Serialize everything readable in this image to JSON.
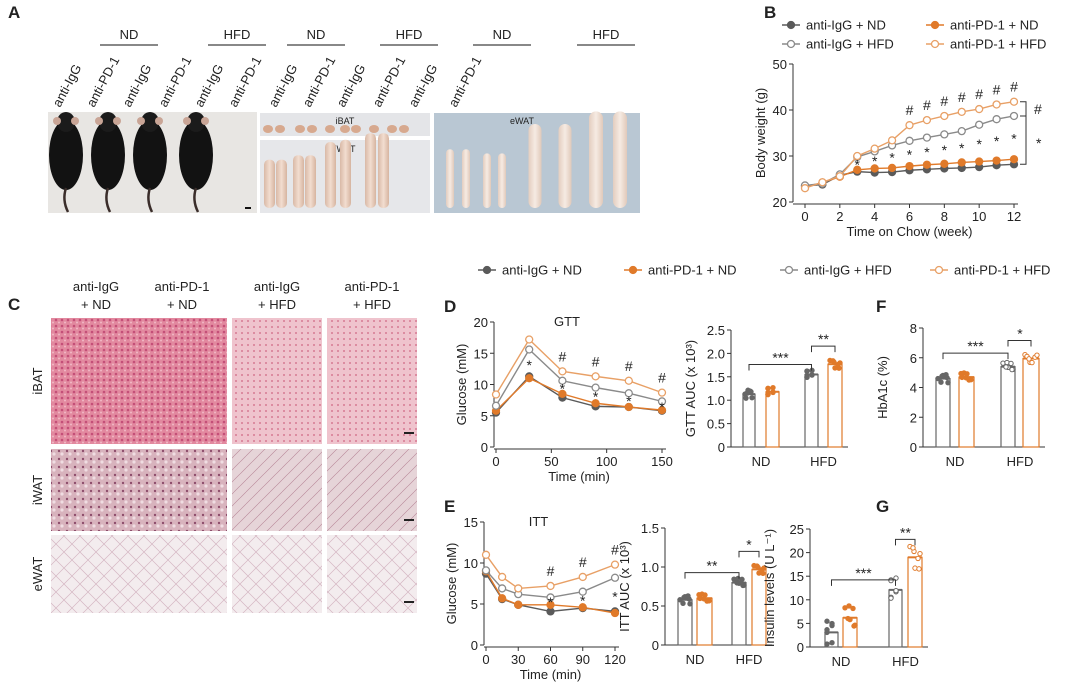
{
  "colors": {
    "igg_nd": "#5a5a5a",
    "pd1_nd": "#e07a2a",
    "igg_hfd": "#8a8a8a",
    "pd1_hfd": "#e8a066"
  },
  "legend": [
    "anti-IgG + ND",
    "anti-PD-1 + ND",
    "anti-IgG + HFD",
    "anti-PD-1 + HFD"
  ],
  "panel_a": {
    "label": "A",
    "diet_headers": [
      "ND",
      "HFD",
      "ND",
      "HFD",
      "ND",
      "HFD"
    ],
    "treatments": [
      "anti-IgG",
      "anti-PD-1",
      "anti-IgG",
      "anti-PD-1",
      "anti-IgG",
      "anti-PD-1",
      "anti-IgG",
      "anti-PD-1",
      "anti-IgG",
      "anti-PD-1",
      "anti-IgG",
      "anti-PD-1"
    ],
    "tissues": [
      "iBAT",
      "iWAT",
      "eWAT"
    ]
  },
  "panel_c": {
    "label": "C",
    "columns": [
      [
        "anti-IgG",
        "+ ND"
      ],
      [
        "anti-PD-1",
        "+ ND"
      ],
      [
        "anti-IgG",
        "+ HFD"
      ],
      [
        "anti-PD-1",
        "+ HFD"
      ]
    ],
    "rows": [
      "iBAT",
      "iWAT",
      "eWAT"
    ]
  },
  "chart_data": [
    {
      "id": "B",
      "label": "B",
      "type": "line",
      "title": "",
      "xlabel": "Time on Chow (week)",
      "ylabel": "Body weight (g)",
      "xlim": [
        0,
        12
      ],
      "ylim": [
        20,
        50
      ],
      "xticks": [
        0,
        2,
        4,
        6,
        8,
        10,
        12
      ],
      "yticks": [
        20,
        30,
        40,
        50
      ],
      "x": [
        0,
        1,
        2,
        3,
        4,
        5,
        6,
        7,
        8,
        9,
        10,
        11,
        12
      ],
      "series": [
        {
          "name": "anti-IgG + ND",
          "values": [
            23.5,
            23.8,
            25.8,
            26.6,
            26.4,
            26.5,
            26.9,
            27.1,
            27.3,
            27.4,
            27.6,
            28.0,
            28.2
          ]
        },
        {
          "name": "anti-PD-1 + ND",
          "values": [
            23.3,
            24.2,
            25.5,
            27.0,
            27.3,
            27.4,
            27.8,
            28.1,
            28.3,
            28.6,
            28.8,
            29.0,
            29.3
          ]
        },
        {
          "name": "anti-IgG + HFD",
          "values": [
            23.6,
            24.0,
            26.0,
            29.8,
            31.0,
            32.3,
            33.3,
            34.0,
            34.7,
            35.4,
            36.8,
            38.0,
            38.7
          ]
        },
        {
          "name": "anti-PD-1 + HFD",
          "values": [
            23.0,
            24.3,
            25.6,
            30.0,
            31.6,
            33.4,
            36.7,
            37.8,
            38.7,
            39.6,
            40.2,
            41.2,
            41.8
          ]
        }
      ],
      "annotations": {
        "hash_at": [
          6,
          7,
          8,
          9,
          10,
          11,
          12
        ],
        "star_at": [
          3,
          4,
          5,
          6,
          7,
          8,
          9,
          10,
          11,
          12
        ],
        "bracket_marks": [
          "#",
          "*"
        ]
      }
    },
    {
      "id": "D1",
      "label": "D",
      "type": "line",
      "title": "GTT",
      "xlabel": "Time (min)",
      "ylabel": "Glucose (mM)",
      "xlim": [
        0,
        150
      ],
      "ylim": [
        0,
        20
      ],
      "xticks": [
        0,
        50,
        100,
        150
      ],
      "yticks": [
        0,
        5,
        10,
        15,
        20
      ],
      "x": [
        0,
        30,
        60,
        90,
        120,
        150
      ],
      "series": [
        {
          "name": "anti-IgG + ND",
          "values": [
            5.5,
            11.3,
            7.9,
            6.5,
            6.4,
            5.8
          ]
        },
        {
          "name": "anti-PD-1 + ND",
          "values": [
            5.8,
            11.0,
            8.5,
            7.0,
            6.4,
            5.9
          ]
        },
        {
          "name": "anti-IgG + HFD",
          "values": [
            6.6,
            15.6,
            10.6,
            9.5,
            8.6,
            7.3
          ]
        },
        {
          "name": "anti-PD-1 + HFD",
          "values": [
            8.4,
            17.2,
            12.1,
            11.3,
            10.6,
            8.7
          ]
        }
      ],
      "annotations": {
        "hash_at": [
          60,
          90,
          120,
          150
        ],
        "star_at": [
          30,
          60,
          90,
          120,
          150
        ]
      }
    },
    {
      "id": "D2",
      "type": "bar",
      "ylabel": "GTT AUC (x 10³)",
      "categories": [
        "ND",
        "HFD"
      ],
      "ylim": [
        0,
        2.5
      ],
      "yticks": [
        "0",
        "0.5",
        "1.0",
        "1.5",
        "2.0",
        "2.5"
      ],
      "series": [
        {
          "name": "anti-IgG",
          "values": [
            1.13,
            1.55
          ]
        },
        {
          "name": "anti-PD-1",
          "values": [
            1.18,
            1.77
          ]
        }
      ],
      "significance": [
        "***",
        "**"
      ]
    },
    {
      "id": "F",
      "label": "F",
      "type": "bar",
      "ylabel": "HbA1c (%)",
      "categories": [
        "ND",
        "HFD"
      ],
      "ylim": [
        0,
        8
      ],
      "yticks": [
        "0",
        "2",
        "4",
        "6",
        "8"
      ],
      "series": [
        {
          "name": "anti-IgG",
          "values": [
            4.6,
            5.4
          ]
        },
        {
          "name": "anti-PD-1",
          "values": [
            4.7,
            5.95
          ]
        }
      ],
      "significance": [
        "***",
        "*"
      ]
    },
    {
      "id": "E1",
      "label": "E",
      "type": "line",
      "title": "ITT",
      "xlabel": "Time (min)",
      "ylabel": "Glucose (mM)",
      "xlim": [
        0,
        120
      ],
      "ylim": [
        0,
        15
      ],
      "xticks": [
        0,
        30,
        60,
        90,
        120
      ],
      "yticks": [
        0,
        5,
        10,
        15
      ],
      "x": [
        0,
        15,
        30,
        60,
        90,
        120
      ],
      "series": [
        {
          "name": "anti-IgG + ND",
          "values": [
            8.7,
            5.6,
            4.9,
            4.1,
            4.5,
            4.1
          ]
        },
        {
          "name": "anti-PD-1 + ND",
          "values": [
            9.0,
            5.7,
            4.9,
            4.9,
            4.6,
            3.9
          ]
        },
        {
          "name": "anti-IgG + HFD",
          "values": [
            9.1,
            6.9,
            6.2,
            5.8,
            6.5,
            8.2
          ]
        },
        {
          "name": "anti-PD-1 + HFD",
          "values": [
            11.0,
            8.3,
            6.9,
            7.2,
            8.3,
            9.8
          ]
        }
      ],
      "annotations": {
        "hash_at": [
          60,
          90,
          120
        ],
        "star_at": [
          60,
          90,
          120
        ]
      }
    },
    {
      "id": "E2",
      "type": "bar",
      "ylabel": "ITT AUC (x 10³)",
      "categories": [
        "ND",
        "HFD"
      ],
      "ylim": [
        0,
        1.5
      ],
      "yticks": [
        "0",
        "0.5",
        "1.0",
        "1.5"
      ],
      "series": [
        {
          "name": "anti-IgG",
          "values": [
            0.58,
            0.8
          ]
        },
        {
          "name": "anti-PD-1",
          "values": [
            0.6,
            0.97
          ]
        }
      ],
      "significance": [
        "**",
        "*"
      ]
    },
    {
      "id": "G",
      "label": "G",
      "type": "bar",
      "ylabel": "Insulin levels (U L⁻¹)",
      "categories": [
        "ND",
        "HFD"
      ],
      "ylim": [
        0,
        25
      ],
      "yticks": [
        "0",
        "5",
        "10",
        "15",
        "20",
        "25"
      ],
      "series": [
        {
          "name": "anti-IgG",
          "values": [
            3.1,
            12.1
          ]
        },
        {
          "name": "anti-PD-1",
          "values": [
            6.2,
            19.0
          ]
        }
      ],
      "significance": [
        "***",
        "**"
      ]
    }
  ]
}
